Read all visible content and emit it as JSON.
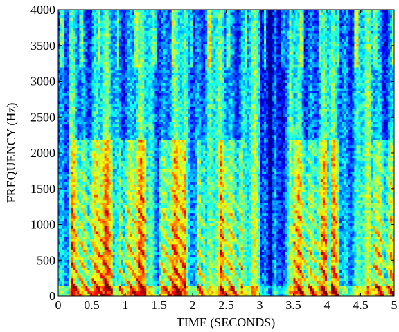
{
  "chart_data": {
    "type": "heatmap",
    "title": "",
    "xlabel": "TIME (SECONDS)",
    "ylabel": "FREQUENCY (Hz)",
    "xlim": [
      0,
      5
    ],
    "ylim": [
      0,
      4000
    ],
    "x_ticks": [
      "0",
      "0.5",
      "1",
      "1.5",
      "2",
      "2.5",
      "3",
      "3.5",
      "4",
      "4.5",
      "5"
    ],
    "y_ticks": [
      "0",
      "500",
      "1000",
      "1500",
      "2000",
      "2500",
      "3000",
      "3500",
      "4000"
    ],
    "colormap": "jet",
    "grid": false,
    "legend": "none",
    "colors": {
      "low": "#1e64c8",
      "mid": "#ffff00",
      "high": "#a00000"
    }
  }
}
